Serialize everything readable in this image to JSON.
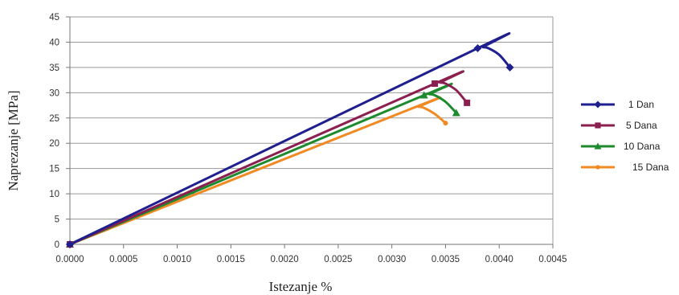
{
  "chart_data": {
    "type": "line",
    "title": "",
    "xlabel": "Istezanje %",
    "ylabel": "Naprezanje [MPa]",
    "xlim": [
      0,
      0.0045
    ],
    "ylim": [
      0,
      45
    ],
    "x_ticks": [
      "0.0000",
      "0.0005",
      "0.0010",
      "0.0015",
      "0.0020",
      "0.0025",
      "0.0030",
      "0.0035",
      "0.0040",
      "0.0045"
    ],
    "y_ticks": [
      "0",
      "5",
      "10",
      "15",
      "20",
      "25",
      "30",
      "35",
      "40",
      "45"
    ],
    "grid": "horizontal",
    "legend_position": "right",
    "series": [
      {
        "name": "1 Dan",
        "color": "#1f1f8f",
        "marker": "diamond",
        "points": [
          [
            0,
            0
          ],
          [
            0.0038,
            38.8
          ],
          [
            0.00385,
            39.0
          ],
          [
            0.0039,
            38.8
          ],
          [
            0.004,
            37.5
          ],
          [
            0.0041,
            35.0
          ]
        ],
        "marker_points": [
          [
            0,
            0
          ],
          [
            0.0038,
            38.8
          ],
          [
            0.0041,
            35.0
          ]
        ]
      },
      {
        "name": "5 Dana",
        "color": "#8b1f4f",
        "marker": "square",
        "points": [
          [
            0,
            0
          ],
          [
            0.0034,
            31.8
          ],
          [
            0.00345,
            32.0
          ],
          [
            0.0035,
            31.8
          ],
          [
            0.0036,
            30.5
          ],
          [
            0.0037,
            28.0
          ]
        ],
        "marker_points": [
          [
            0,
            0
          ],
          [
            0.0034,
            31.8
          ],
          [
            0.0037,
            28.0
          ]
        ]
      },
      {
        "name": "10 Dana",
        "color": "#1e8a2e",
        "marker": "triangle",
        "points": [
          [
            0,
            0
          ],
          [
            0.0033,
            29.5
          ],
          [
            0.00335,
            29.7
          ],
          [
            0.0034,
            29.5
          ],
          [
            0.0035,
            28.2
          ],
          [
            0.0036,
            26.0
          ]
        ],
        "marker_points": [
          [
            0,
            0
          ],
          [
            0.0033,
            29.5
          ],
          [
            0.0036,
            26.0
          ]
        ]
      },
      {
        "name": "15 Dana",
        "color": "#f08a24",
        "marker": "circle",
        "points": [
          [
            0,
            0
          ],
          [
            0.0032,
            27.0
          ],
          [
            0.00325,
            27.2
          ],
          [
            0.0033,
            27.0
          ],
          [
            0.0034,
            25.8
          ],
          [
            0.0035,
            24.0
          ]
        ],
        "marker_points": [
          [
            0,
            0
          ],
          [
            0.0035,
            24.0
          ]
        ]
      }
    ],
    "colors": {
      "grid": "#999999",
      "axis": "#777777"
    }
  }
}
